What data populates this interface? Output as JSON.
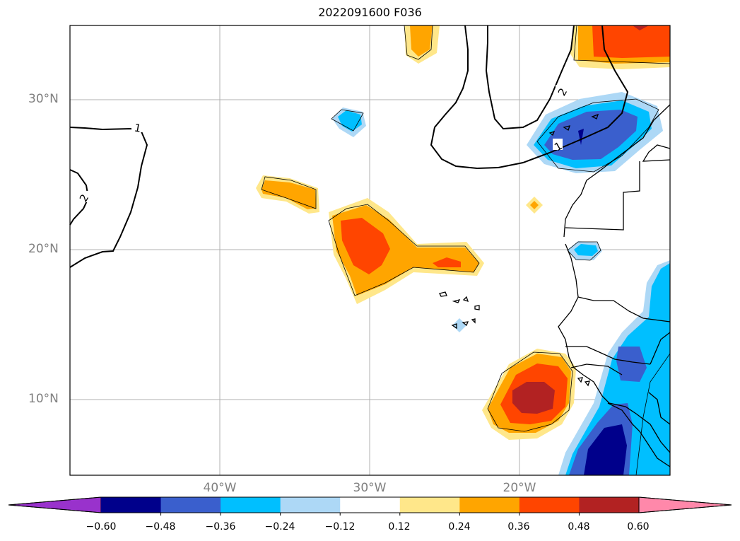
{
  "title": "2022091600 F036",
  "lat_labels": [
    "30°N",
    "20°N",
    "10°N"
  ],
  "lon_labels": [
    "40°W",
    "30°W",
    "20°W"
  ],
  "contour_labels": [
    "1",
    "2",
    "2",
    "1"
  ],
  "colorbar": {
    "ticks": [
      "−0.60",
      "−0.48",
      "−0.36",
      "−0.24",
      "−0.12",
      "0.12",
      "0.24",
      "0.36",
      "0.48",
      "0.60"
    ],
    "colors": [
      "#9932cc",
      "#00008b",
      "#3a5fcd",
      "#00bfff",
      "#add8f6",
      "#ffffff",
      "#ffe78a",
      "#ffa500",
      "#ff4500",
      "#b22222",
      "#ff88aa"
    ]
  }
}
